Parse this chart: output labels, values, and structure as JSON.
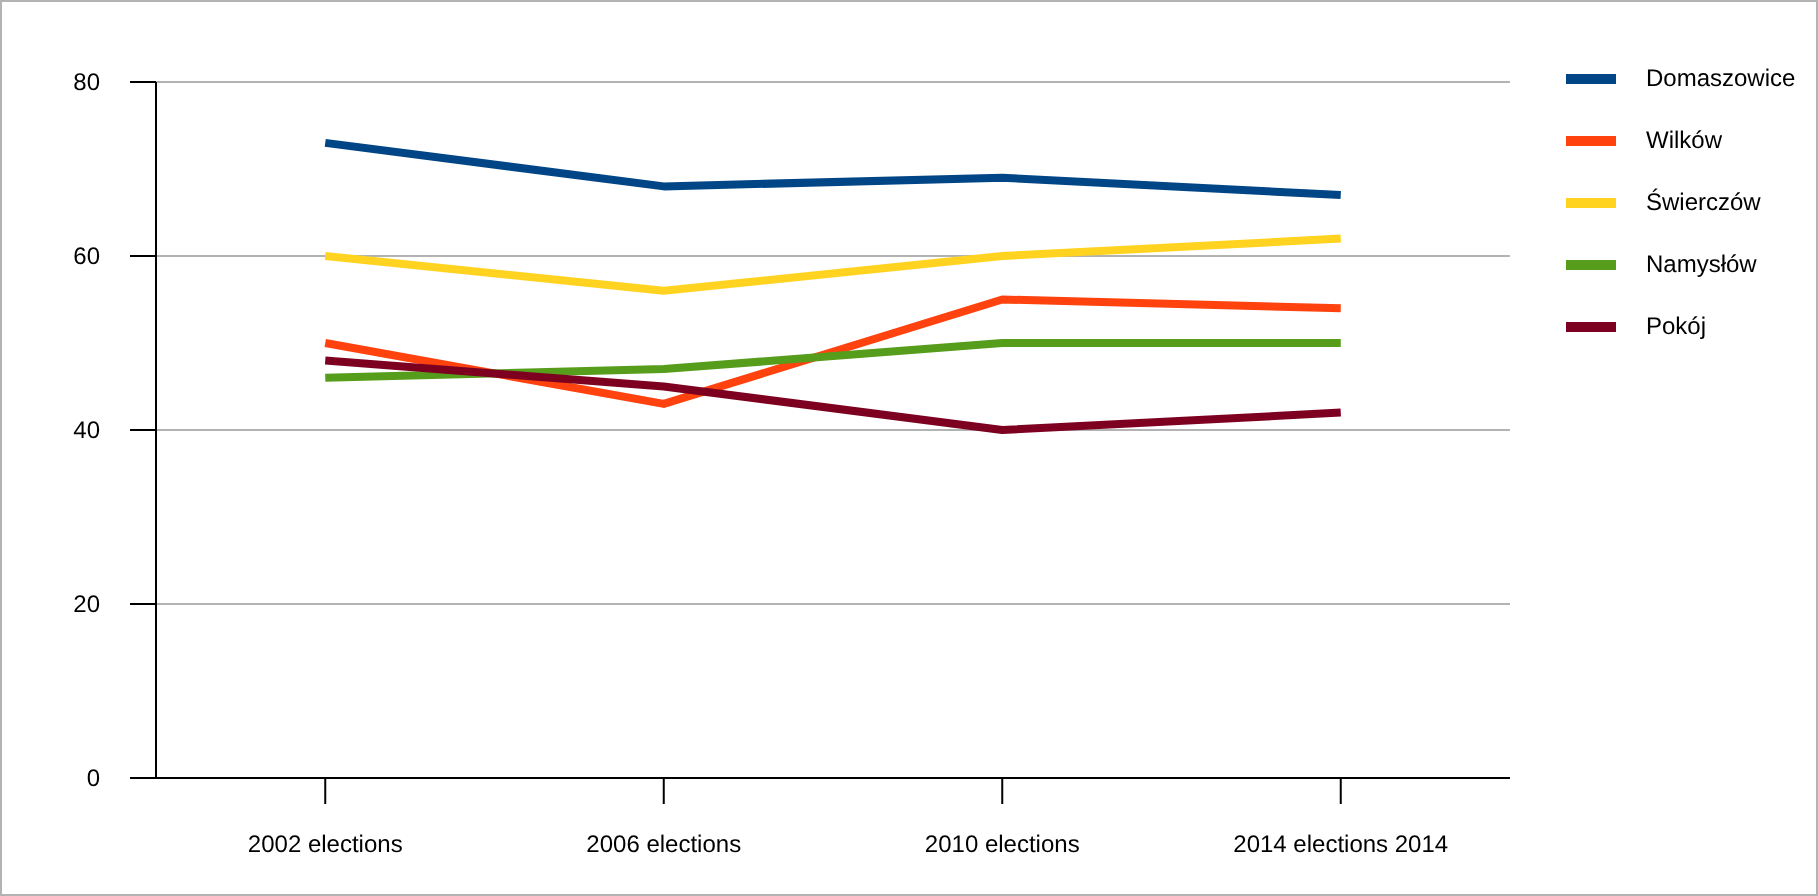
{
  "chart_data": {
    "type": "line",
    "categories": [
      "2002 elections",
      "2006 elections",
      "2010 elections",
      "2014 elections 2014"
    ],
    "series": [
      {
        "name": "Domaszowice",
        "color": "#004586",
        "values": [
          73,
          68,
          69,
          67
        ]
      },
      {
        "name": "Wilków",
        "color": "#ff420e",
        "values": [
          50,
          43,
          55,
          54
        ]
      },
      {
        "name": "Świerczów",
        "color": "#ffd320",
        "values": [
          60,
          56,
          60,
          62
        ]
      },
      {
        "name": "Namysłów",
        "color": "#579d1c",
        "values": [
          46,
          47,
          50,
          50
        ]
      },
      {
        "name": "Pokój",
        "color": "#7e0021",
        "values": [
          48,
          45,
          40,
          42
        ]
      }
    ],
    "ylim": [
      0,
      80
    ],
    "yticks": [
      0,
      20,
      40,
      60,
      80
    ],
    "grid": "y",
    "legend": "top right",
    "marker": "none",
    "line_style": "solid"
  }
}
